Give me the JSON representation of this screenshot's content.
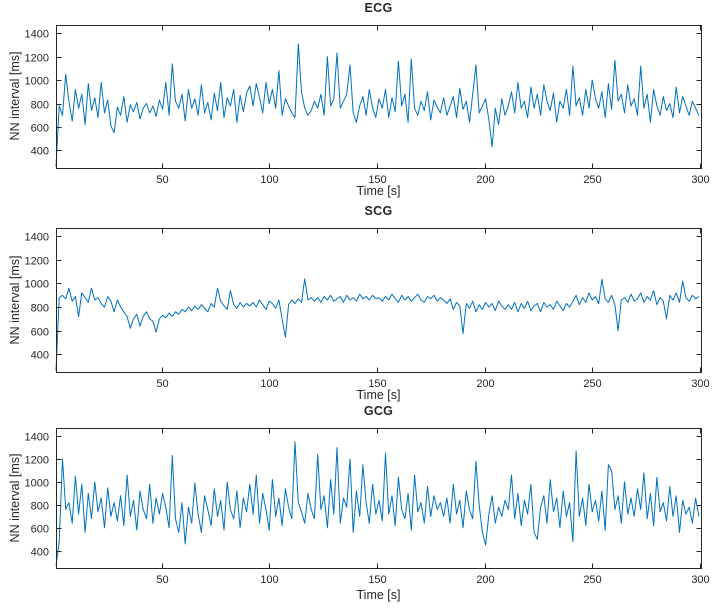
{
  "figure": {
    "background": "#ffffff",
    "axis_color": "#262626",
    "tick_label_color": "#262626",
    "line_color": "#0072BD"
  },
  "chart_data": [
    {
      "type": "line",
      "title": "ECG",
      "xlabel": "Time [s]",
      "ylabel": "NN interval [ms]",
      "legend": null,
      "grid": false,
      "line_color": "#0072BD",
      "xlim": [
        1,
        300.5
      ],
      "ylim": [
        250,
        1470
      ],
      "xticks": [
        50,
        100,
        150,
        200,
        250,
        300
      ],
      "yticks": [
        400,
        600,
        800,
        1000,
        1200,
        1400
      ],
      "x_start": 1,
      "x_step": 1.5,
      "values": [
        260,
        780,
        700,
        1050,
        820,
        650,
        920,
        760,
        880,
        620,
        970,
        740,
        850,
        680,
        980,
        720,
        830,
        610,
        550,
        770,
        700,
        860,
        640,
        790,
        730,
        810,
        670,
        760,
        800,
        720,
        780,
        690,
        830,
        750,
        980,
        700,
        1140,
        820,
        760,
        880,
        650,
        920,
        760,
        840,
        700,
        960,
        720,
        810,
        660,
        890,
        740,
        980,
        680,
        850,
        780,
        920,
        640,
        870,
        730,
        890,
        950,
        780,
        970,
        850,
        720,
        980,
        800,
        920,
        760,
        1080,
        700,
        840,
        780,
        720,
        680,
        1310,
        900,
        760,
        700,
        740,
        820,
        760,
        880,
        700,
        1200,
        780,
        840,
        1230,
        760,
        820,
        880,
        1130,
        720,
        640,
        780,
        860,
        700,
        920,
        760,
        680,
        840,
        760,
        920,
        680,
        850,
        730,
        1160,
        780,
        880,
        640,
        1180,
        760,
        700,
        820,
        740,
        900,
        660,
        830,
        770,
        720,
        850,
        700,
        780,
        860,
        680,
        930,
        750,
        820,
        640,
        880,
        1130,
        720,
        780,
        840,
        660,
        430,
        760,
        620,
        840,
        700,
        780,
        900,
        720,
        980,
        760,
        820,
        680,
        940,
        760,
        880,
        700,
        960,
        820,
        740,
        890,
        640,
        820,
        760,
        920,
        700,
        1120,
        780,
        850,
        700,
        920,
        760,
        1000,
        840,
        760,
        900,
        680,
        970,
        750,
        1170,
        820,
        880,
        720,
        960,
        780,
        840,
        700,
        1120,
        760,
        880,
        640,
        920,
        780,
        700,
        860,
        740,
        800,
        680,
        940,
        720,
        860,
        780,
        700,
        820,
        760,
        700
      ]
    },
    {
      "type": "line",
      "title": "SCG",
      "xlabel": "Time [s]",
      "ylabel": "NN interval [ms]",
      "legend": null,
      "grid": false,
      "line_color": "#0072BD",
      "xlim": [
        1,
        300.5
      ],
      "ylim": [
        250,
        1470
      ],
      "xticks": [
        50,
        100,
        150,
        200,
        250,
        300
      ],
      "yticks": [
        400,
        600,
        800,
        1000,
        1200,
        1400
      ],
      "x_start": 1,
      "x_step": 1.5,
      "values": [
        260,
        880,
        900,
        870,
        960,
        850,
        890,
        720,
        920,
        880,
        840,
        960,
        860,
        880,
        830,
        800,
        890,
        850,
        760,
        860,
        800,
        760,
        720,
        620,
        700,
        740,
        640,
        720,
        760,
        700,
        680,
        590,
        700,
        730,
        710,
        750,
        720,
        760,
        740,
        780,
        760,
        800,
        770,
        810,
        780,
        820,
        790,
        760,
        830,
        800,
        960,
        850,
        810,
        780,
        940,
        820,
        790,
        840,
        800,
        830,
        810,
        840,
        800,
        860,
        820,
        780,
        850,
        830,
        790,
        860,
        700,
        545,
        820,
        860,
        830,
        870,
        840,
        1040,
        860,
        880,
        850,
        880,
        840,
        890,
        860,
        900,
        850,
        870,
        890,
        840,
        900,
        860,
        880,
        850,
        910,
        870,
        890,
        860,
        900,
        870,
        880,
        850,
        890,
        860,
        910,
        870,
        840,
        900,
        860,
        890,
        850,
        880,
        910,
        860,
        840,
        890,
        870,
        900,
        850,
        880,
        860,
        830,
        870,
        780,
        840,
        810,
        575,
        830,
        790,
        850,
        760,
        820,
        780,
        840,
        800,
        830,
        770,
        850,
        810,
        780,
        820,
        780,
        840,
        760,
        830,
        790,
        850,
        770,
        810,
        830,
        760,
        840,
        800,
        820,
        780,
        850,
        810,
        770,
        830,
        800,
        850,
        900,
        820,
        880,
        840,
        920,
        860,
        890,
        830,
        1035,
        870,
        840,
        900,
        820,
        600,
        860,
        880,
        840,
        910,
        850,
        870,
        920,
        840,
        890,
        860,
        940,
        820,
        880,
        850,
        700,
        900,
        860,
        920,
        840,
        1020,
        880,
        850,
        900,
        870,
        890
      ]
    },
    {
      "type": "line",
      "title": "GCG",
      "xlabel": "Time [s]",
      "ylabel": "NN interval [ms]",
      "legend": null,
      "grid": false,
      "line_color": "#0072BD",
      "xlim": [
        1,
        300.5
      ],
      "ylim": [
        250,
        1470
      ],
      "xticks": [
        50,
        100,
        150,
        200,
        250,
        300
      ],
      "yticks": [
        400,
        600,
        800,
        1000,
        1200,
        1400
      ],
      "x_start": 1,
      "x_step": 1.5,
      "values": [
        270,
        480,
        1200,
        760,
        820,
        640,
        1050,
        720,
        980,
        560,
        900,
        680,
        1000,
        740,
        860,
        600,
        950,
        700,
        820,
        660,
        880,
        620,
        1060,
        700,
        840,
        580,
        920,
        760,
        680,
        980,
        640,
        860,
        720,
        900,
        780,
        600,
        1230,
        680,
        560,
        820,
        460,
        780,
        640,
        990,
        720,
        560,
        880,
        760,
        620,
        940,
        700,
        840,
        580,
        1000,
        760,
        680,
        920,
        600,
        860,
        740,
        980,
        720,
        1060,
        640,
        900,
        760,
        580,
        1020,
        700,
        860,
        620,
        940,
        780,
        680,
        1350,
        820,
        740,
        640,
        900,
        760,
        680,
        1240,
        760,
        880,
        600,
        1020,
        720,
        1300,
        640,
        860,
        780,
        1200,
        560,
        920,
        700,
        1150,
        820,
        640,
        980,
        720,
        840,
        660,
        1250,
        720,
        880,
        620,
        1040,
        760,
        680,
        900,
        580,
        1060,
        740,
        820,
        640,
        960,
        700,
        880,
        760,
        820,
        700,
        860,
        640,
        980,
        720,
        840,
        600,
        920,
        760,
        680,
        1180,
        800,
        560,
        450,
        720,
        880,
        640,
        780,
        700,
        840,
        760,
        1060,
        680,
        900,
        620,
        840,
        720,
        980,
        560,
        500,
        780,
        880,
        640,
        1020,
        740,
        860,
        600,
        920,
        700,
        820,
        480,
        1270,
        700,
        860,
        620,
        980,
        740,
        840,
        660,
        920,
        580,
        1150,
        1100,
        760,
        880,
        640,
        1000,
        720,
        860,
        700,
        940,
        760,
        1080,
        680,
        900,
        620,
        1040,
        740,
        820,
        660,
        960,
        700,
        880,
        560,
        840,
        720,
        780,
        640,
        860,
        700
      ]
    }
  ]
}
